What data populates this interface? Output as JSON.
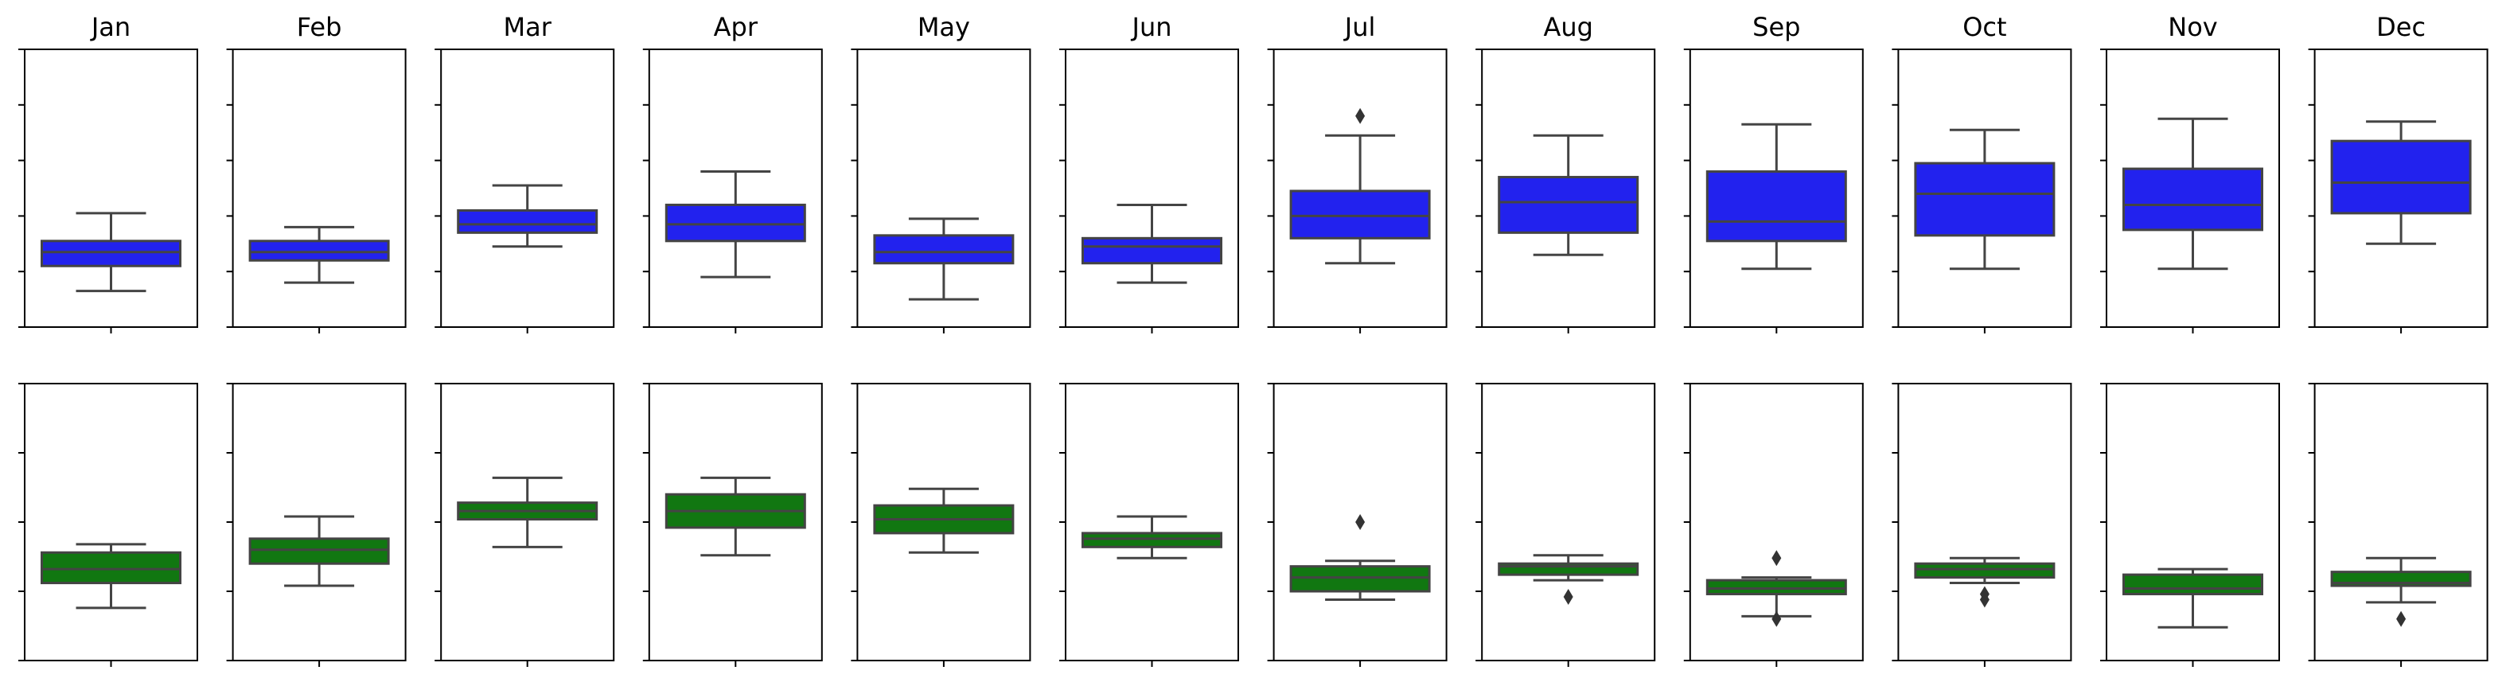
{
  "chart_data": {
    "type": "box",
    "layout": "2 rows x 12 columns of small-multiple box plots",
    "months": [
      "Jan",
      "Feb",
      "Mar",
      "Apr",
      "May",
      "Jun",
      "Jul",
      "Aug",
      "Sep",
      "Oct",
      "Nov",
      "Dec"
    ],
    "tick_labels_shown": false,
    "title": "",
    "xlabel": "",
    "ylabel": "",
    "rows": [
      {
        "name": "",
        "color": "#2222ee",
        "scale": "unlabeled axis, 0 = bottom of panel, 100 = top of panel",
        "ylim": [
          0,
          100
        ],
        "ticks": [
          0,
          20,
          40,
          60,
          80,
          100
        ],
        "boxes": [
          {
            "month": "Jan",
            "whisker_low": 13,
            "q1": 22,
            "median": 27,
            "q3": 31,
            "whisker_high": 41,
            "outliers": []
          },
          {
            "month": "Feb",
            "whisker_low": 16,
            "q1": 24,
            "median": 27,
            "q3": 31,
            "whisker_high": 36,
            "outliers": []
          },
          {
            "month": "Mar",
            "whisker_low": 29,
            "q1": 34,
            "median": 37,
            "q3": 42,
            "whisker_high": 51,
            "outliers": []
          },
          {
            "month": "Apr",
            "whisker_low": 18,
            "q1": 31,
            "median": 37,
            "q3": 44,
            "whisker_high": 56,
            "outliers": []
          },
          {
            "month": "May",
            "whisker_low": 10,
            "q1": 23,
            "median": 27,
            "q3": 33,
            "whisker_high": 39,
            "outliers": []
          },
          {
            "month": "Jun",
            "whisker_low": 16,
            "q1": 23,
            "median": 29,
            "q3": 32,
            "whisker_high": 44,
            "outliers": []
          },
          {
            "month": "Jul",
            "whisker_low": 23,
            "q1": 32,
            "median": 40,
            "q3": 49,
            "whisker_high": 69,
            "outliers": [
              76
            ]
          },
          {
            "month": "Aug",
            "whisker_low": 26,
            "q1": 34,
            "median": 45,
            "q3": 54,
            "whisker_high": 69,
            "outliers": []
          },
          {
            "month": "Sep",
            "whisker_low": 21,
            "q1": 31,
            "median": 38,
            "q3": 56,
            "whisker_high": 73,
            "outliers": []
          },
          {
            "month": "Oct",
            "whisker_low": 21,
            "q1": 33,
            "median": 48,
            "q3": 59,
            "whisker_high": 71,
            "outliers": []
          },
          {
            "month": "Nov",
            "whisker_low": 21,
            "q1": 35,
            "median": 44,
            "q3": 57,
            "whisker_high": 75,
            "outliers": []
          },
          {
            "month": "Dec",
            "whisker_low": 30,
            "q1": 41,
            "median": 52,
            "q3": 67,
            "whisker_high": 74,
            "outliers": []
          }
        ]
      },
      {
        "name": "",
        "color": "#117711",
        "scale": "unlabeled axis, 0 = bottom of panel, 100 = top of panel",
        "ylim": [
          0,
          100
        ],
        "ticks": [
          0,
          25,
          50,
          75,
          100
        ],
        "boxes": [
          {
            "month": "Jan",
            "whisker_low": 19,
            "q1": 28,
            "median": 33,
            "q3": 39,
            "whisker_high": 42,
            "outliers": []
          },
          {
            "month": "Feb",
            "whisker_low": 27,
            "q1": 35,
            "median": 40,
            "q3": 44,
            "whisker_high": 52,
            "outliers": []
          },
          {
            "month": "Mar",
            "whisker_low": 41,
            "q1": 51,
            "median": 54,
            "q3": 57,
            "whisker_high": 66,
            "outliers": []
          },
          {
            "month": "Apr",
            "whisker_low": 38,
            "q1": 48,
            "median": 54,
            "q3": 60,
            "whisker_high": 66,
            "outliers": []
          },
          {
            "month": "May",
            "whisker_low": 39,
            "q1": 46,
            "median": 51,
            "q3": 56,
            "whisker_high": 62,
            "outliers": []
          },
          {
            "month": "Jun",
            "whisker_low": 37,
            "q1": 41,
            "median": 44,
            "q3": 46,
            "whisker_high": 52,
            "outliers": []
          },
          {
            "month": "Jul",
            "whisker_low": 22,
            "q1": 25,
            "median": 30,
            "q3": 34,
            "whisker_high": 36,
            "outliers": [
              50
            ]
          },
          {
            "month": "Aug",
            "whisker_low": 29,
            "q1": 31,
            "median": 34,
            "q3": 35,
            "whisker_high": 38,
            "outliers": [
              23
            ]
          },
          {
            "month": "Sep",
            "whisker_low": 16,
            "q1": 24,
            "median": 26,
            "q3": 29,
            "whisker_high": 30,
            "outliers": [
              37,
              15
            ]
          },
          {
            "month": "Oct",
            "whisker_low": 28,
            "q1": 30,
            "median": 33,
            "q3": 35,
            "whisker_high": 37,
            "outliers": [
              24,
              22
            ]
          },
          {
            "month": "Nov",
            "whisker_low": 12,
            "q1": 24,
            "median": 26,
            "q3": 31,
            "whisker_high": 33,
            "outliers": []
          },
          {
            "month": "Dec",
            "whisker_low": 21,
            "q1": 27,
            "median": 28,
            "q3": 32,
            "whisker_high": 37,
            "outliers": [
              15
            ]
          }
        ]
      }
    ]
  },
  "colors": {
    "line": "#444444",
    "outlier": "#333333",
    "axes": "#000000"
  }
}
